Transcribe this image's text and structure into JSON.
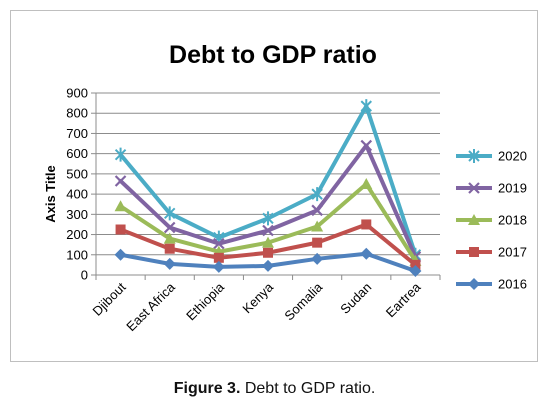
{
  "caption": {
    "label": "Figure 3.",
    "text": " Debt to GDP ratio."
  },
  "chart_data": {
    "type": "line",
    "title": "Debt to GDP ratio",
    "ylabel": "Axis Title",
    "xlabel": "",
    "categories": [
      "Djibout",
      "East Africa",
      "Ethiopia",
      "Kenya",
      "Somalia",
      "Sudan",
      "Eartrea"
    ],
    "ylim": [
      0,
      900
    ],
    "yticks": [
      0,
      100,
      200,
      300,
      400,
      500,
      600,
      700,
      800,
      900
    ],
    "grid": true,
    "legend_position": "right",
    "series": [
      {
        "name": "2020",
        "color": "#4bacc6",
        "marker": "star",
        "values": [
          595,
          305,
          185,
          280,
          400,
          835,
          100
        ]
      },
      {
        "name": "2019",
        "color": "#8064a2",
        "marker": "x",
        "values": [
          465,
          235,
          155,
          220,
          320,
          640,
          90
        ]
      },
      {
        "name": "2018",
        "color": "#9bbb59",
        "marker": "triangle",
        "values": [
          340,
          180,
          115,
          160,
          240,
          450,
          70
        ]
      },
      {
        "name": "2017",
        "color": "#c0504d",
        "marker": "square",
        "values": [
          225,
          130,
          85,
          110,
          160,
          250,
          50
        ]
      },
      {
        "name": "2016",
        "color": "#4f81bd",
        "marker": "diamond",
        "values": [
          100,
          55,
          40,
          45,
          80,
          105,
          20
        ]
      }
    ]
  }
}
